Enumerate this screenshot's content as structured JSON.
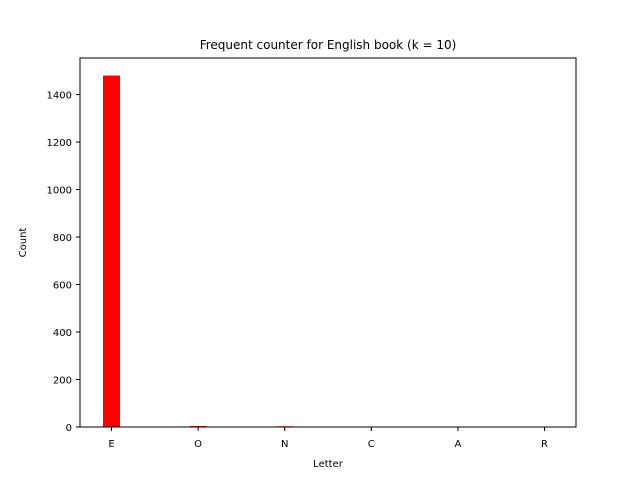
{
  "chart_data": {
    "type": "bar",
    "title": "Frequent counter for English book (k = 10)",
    "xlabel": "Letter",
    "ylabel": "Count",
    "categories": [
      "E",
      "O",
      "N",
      "C",
      "A",
      "R"
    ],
    "values": [
      1480,
      4,
      3,
      0,
      0,
      0
    ],
    "ylim": [
      0,
      1554
    ],
    "yticks": [
      0,
      200,
      400,
      600,
      800,
      1000,
      1200,
      1400
    ],
    "bar_color": "#ff0000",
    "grid": false,
    "legend": "none"
  }
}
